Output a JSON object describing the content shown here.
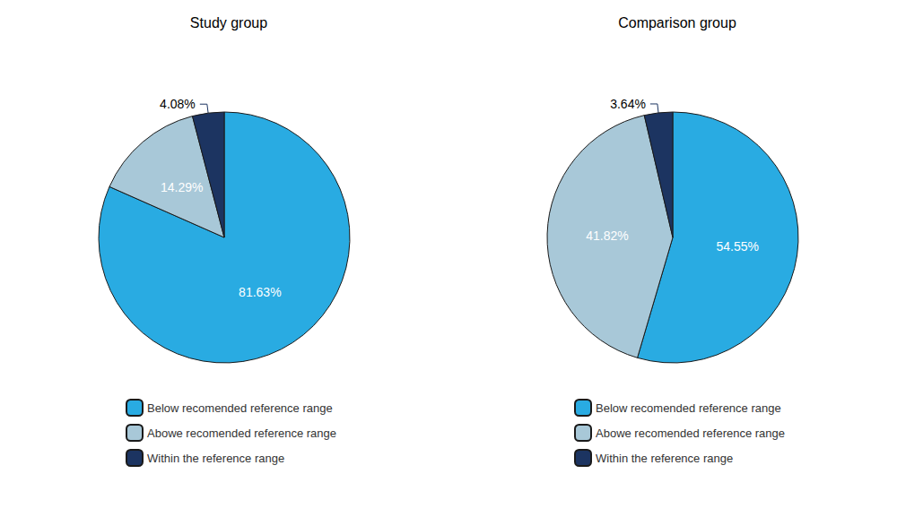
{
  "chart_data": [
    {
      "type": "pie",
      "title": "Study group",
      "categories": [
        "Below recomended reference range",
        "Abowe recomended reference range",
        "Within the reference range"
      ],
      "values": [
        81.63,
        14.29,
        4.08
      ],
      "value_labels": [
        "81.63%",
        "14.29%",
        "4.08%"
      ],
      "colors": [
        "#29ABE2",
        "#A8C8D8",
        "#1C3461"
      ],
      "data_labels": true,
      "legend": "bottom"
    },
    {
      "type": "pie",
      "title": "Comparison group",
      "categories": [
        "Below recomended reference range",
        "Abowe recomended reference range",
        "Within the reference range"
      ],
      "values": [
        54.55,
        41.82,
        3.64
      ],
      "value_labels": [
        "54.55%",
        "41.82%",
        "3.64%"
      ],
      "colors": [
        "#29ABE2",
        "#A8C8D8",
        "#1C3461"
      ],
      "data_labels": true,
      "legend": "bottom"
    }
  ]
}
